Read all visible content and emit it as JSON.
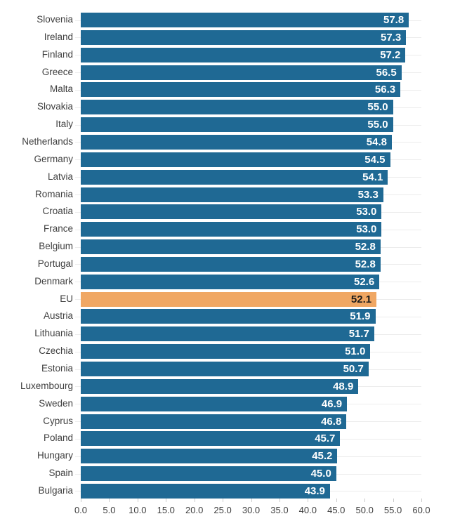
{
  "chart_data": {
    "type": "bar",
    "orientation": "horizontal",
    "title": "",
    "xlabel": "",
    "ylabel": "",
    "categories": [
      "Slovenia",
      "Ireland",
      "Finland",
      "Greece",
      "Malta",
      "Slovakia",
      "Italy",
      "Netherlands",
      "Germany",
      "Latvia",
      "Romania",
      "Croatia",
      "France",
      "Belgium",
      "Portugal",
      "Denmark",
      "EU",
      "Austria",
      "Lithuania",
      "Czechia",
      "Estonia",
      "Luxembourg",
      "Sweden",
      "Cyprus",
      "Poland",
      "Hungary",
      "Spain",
      "Bulgaria"
    ],
    "values": [
      57.8,
      57.3,
      57.2,
      56.5,
      56.3,
      55.0,
      55.0,
      54.8,
      54.5,
      54.1,
      53.3,
      53.0,
      53.0,
      52.8,
      52.8,
      52.6,
      52.1,
      51.9,
      51.7,
      51.0,
      50.7,
      48.9,
      46.9,
      46.8,
      45.7,
      45.2,
      45.0,
      43.9
    ],
    "value_labels": [
      "57.8",
      "57.3",
      "57.2",
      "56.5",
      "56.3",
      "55.0",
      "55.0",
      "54.8",
      "54.5",
      "54.1",
      "53.3",
      "53.0",
      "53.0",
      "52.8",
      "52.8",
      "52.6",
      "52.1",
      "51.9",
      "51.7",
      "51.0",
      "50.7",
      "48.9",
      "46.9",
      "46.8",
      "45.7",
      "45.2",
      "45.0",
      "43.9"
    ],
    "highlight_category": "EU",
    "highlight_index": 16,
    "xlim": [
      0,
      60
    ],
    "x_tick_values": [
      0,
      5,
      10,
      15,
      20,
      25,
      30,
      35,
      40,
      45,
      50,
      55,
      60
    ],
    "x_tick_labels": [
      "0.0",
      "5.0",
      "10.0",
      "15.0",
      "20.0",
      "25.0",
      "30.0",
      "35.0",
      "40.0",
      "45.0",
      "50.0",
      "55.0",
      "60.0"
    ],
    "grid": "horizontal category gridlines on",
    "legend": "none",
    "colors": {
      "bar": "#1f6994",
      "highlight_bar": "#f0a763",
      "value_label": "#ffffff",
      "highlight_value_label": "#1a1a1a",
      "axis_text": "#3f3f3f",
      "category_text": "#3f3f3f",
      "gridline": "#ececec",
      "tick": "#cccccc",
      "background": "#ffffff"
    }
  }
}
